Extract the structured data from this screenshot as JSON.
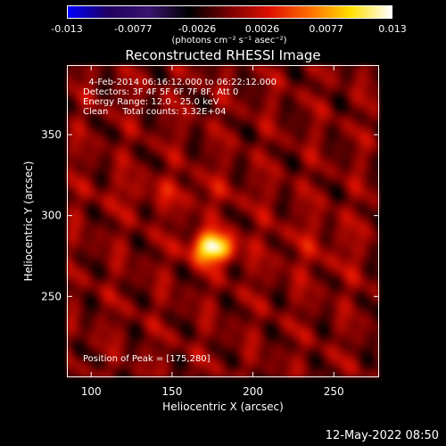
{
  "chart_data": {
    "type": "heatmap",
    "title": "Reconstructed RHESSI Image",
    "xlabel": "Heliocentric X (arcsec)",
    "ylabel": "Heliocentric Y (arcsec)",
    "xlim": [
      85,
      278
    ],
    "ylim": [
      200,
      393
    ],
    "x_ticks": [
      100,
      150,
      200,
      250
    ],
    "y_ticks": [
      250,
      300,
      350
    ],
    "peak": {
      "x": 175,
      "y": 280
    },
    "colorbar": {
      "range": [
        -0.013,
        0.013
      ],
      "tick_values": [
        -0.013,
        -0.0077,
        -0.0026,
        0.0026,
        0.0077,
        0.013
      ],
      "tick_labels": [
        "-0.013",
        "-0.0077",
        "-0.0026",
        "0.0026",
        "0.0077",
        "0.013"
      ],
      "unit_label": "(photons cm⁻² s⁻¹ asec⁻²)",
      "colors": [
        "#0000ff",
        "#200060",
        "#3a1470",
        "#000000",
        "#7a0000",
        "#e01000",
        "#ff7000",
        "#ffe000",
        "#ffffff"
      ]
    },
    "annotations": [
      "  4-Feb-2014 06:16:12.000 to 06:22:12.000",
      "Detectors: 3F 4F 5F 6F 7F 8F, Att 0",
      "Energy Range: 12.0 - 25.0 keV",
      "Clean     Total counts: 3.32E+04"
    ],
    "peak_label": "Position of Peak = [175,280]",
    "timestamp": "12-May-2022 08:50"
  }
}
